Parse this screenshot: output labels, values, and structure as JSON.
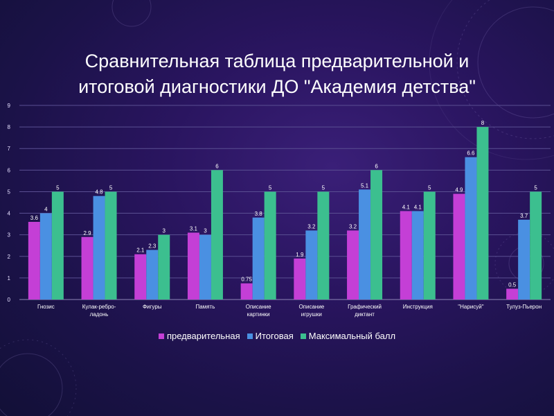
{
  "slide": {
    "title_line1": "Сравнительная таблица предварительной и",
    "title_line2": "итоговой диагностики ДО \"Академия детства\""
  },
  "chart_data": {
    "type": "bar",
    "categories": [
      [
        "Гнозис"
      ],
      [
        "Кулак-ребро-",
        "ладонь"
      ],
      [
        "Фигуры"
      ],
      [
        "Память"
      ],
      [
        "Описание",
        "картинки"
      ],
      [
        "Описание",
        "игрушки"
      ],
      [
        "Графический",
        "диктант"
      ],
      [
        "Инструкция"
      ],
      [
        "\"Нарисуй\""
      ],
      [
        "Тулуз-Пьерон"
      ]
    ],
    "series": [
      {
        "name": "предварительная",
        "color": "#c43fd6",
        "values": [
          3.6,
          2.9,
          2.1,
          3.1,
          0.75,
          1.9,
          3.2,
          4.1,
          4.9,
          0.5
        ],
        "labels": [
          "3.6",
          "2.9",
          "2.1",
          "3.1",
          "0.75",
          "1.9",
          "3.2",
          "4.1",
          "4.9",
          "0.5"
        ]
      },
      {
        "name": "Итоговая",
        "color": "#4a90e2",
        "values": [
          4,
          4.8,
          2.3,
          3,
          3.8,
          3.2,
          5.1,
          4.1,
          6.6,
          3.7
        ],
        "labels": [
          "4",
          "4.8",
          "2.3",
          "3",
          "3.8",
          "3.2",
          "5.1",
          "4.1",
          "6.6",
          "3.7"
        ]
      },
      {
        "name": "Максимальный балл",
        "color": "#3cbf8f",
        "values": [
          5,
          5,
          3,
          6,
          5,
          5,
          6,
          5,
          8,
          5
        ],
        "labels": [
          "5",
          "5",
          "3",
          "6",
          "5",
          "5",
          "6",
          "5",
          "8",
          "5"
        ]
      }
    ],
    "ylim": [
      0,
      9
    ],
    "yticks": [
      "0",
      "1",
      "2",
      "3",
      "4",
      "5",
      "6",
      "7",
      "8",
      "9"
    ],
    "grid": true,
    "legend_position": "bottom"
  }
}
